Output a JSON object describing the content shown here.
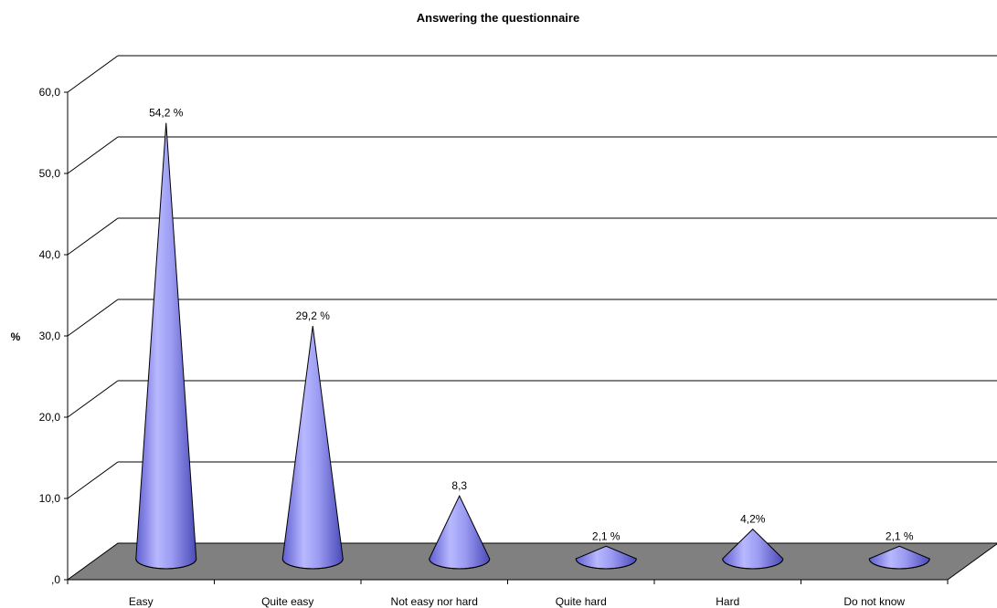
{
  "chart_data": {
    "type": "bar",
    "title": "Answering the questionnaire",
    "xlabel": "",
    "ylabel": "%",
    "ylim": [
      0,
      60
    ],
    "ytick_labels": [
      ",0",
      "10,0",
      "20,0",
      "30,0",
      "40,0",
      "50,0",
      "60,0"
    ],
    "categories": [
      "Easy",
      "Quite easy",
      "Not easy nor hard",
      "Quite hard",
      "Hard",
      "Do not know"
    ],
    "values": [
      54.2,
      29.2,
      8.3,
      2.1,
      4.2,
      2.1
    ],
    "data_labels": [
      "54,2 %",
      "29,2 %",
      "8,3",
      "2,1 %",
      "4,2%",
      "2,1 %"
    ],
    "grid": true,
    "mark_shape": "cone",
    "colors": {
      "cone": "#9999ff",
      "floor": "#808080",
      "grid": "#000000"
    }
  }
}
